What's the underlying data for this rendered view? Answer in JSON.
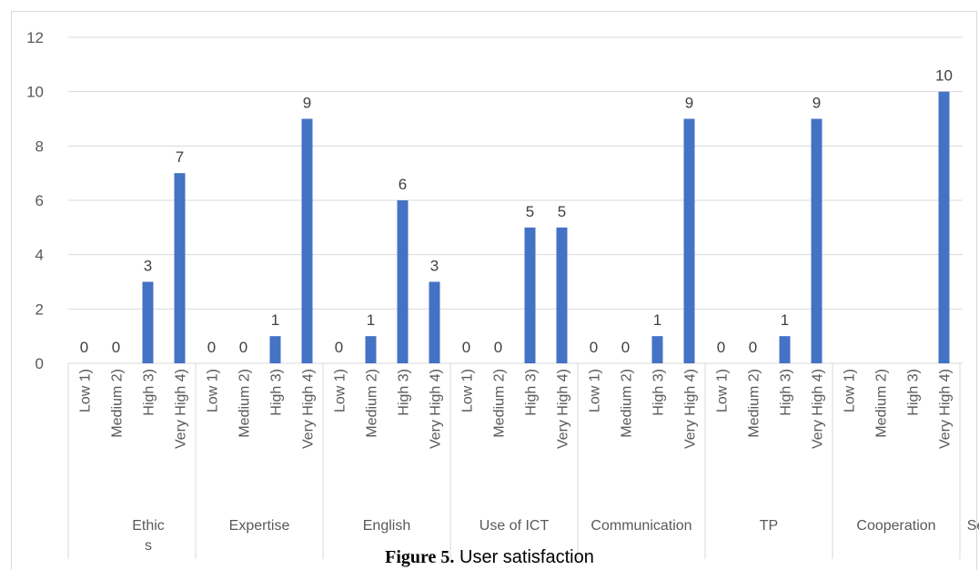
{
  "chart_data": {
    "type": "bar",
    "color": "#4472c4",
    "ylim": [
      0,
      12
    ],
    "yticks": [
      0,
      2,
      4,
      6,
      8,
      10,
      12
    ],
    "grid": true,
    "groups": [
      {
        "label": "Ethics",
        "categories": [
          "Low 1)",
          "Medium 2)",
          "High 3)",
          "Very High 4)"
        ],
        "values": [
          0,
          0,
          3,
          7
        ]
      },
      {
        "label": "Expertise",
        "categories": [
          "Low 1)",
          "Medium 2)",
          "High 3)",
          "Very High 4)"
        ],
        "values": [
          0,
          0,
          1,
          9
        ]
      },
      {
        "label": "English",
        "categories": [
          "Low 1)",
          "Medium 2)",
          "High 3)",
          "Very High 4)"
        ],
        "values": [
          0,
          1,
          6,
          3
        ]
      },
      {
        "label": "Use of ICT",
        "categories": [
          "Low 1)",
          "Medium 2)",
          "High 3)",
          "Very High 4)"
        ],
        "values": [
          0,
          0,
          5,
          5
        ]
      },
      {
        "label": "Communication",
        "categories": [
          "Low 1)",
          "Medium 2)",
          "High 3)",
          "Very High 4)"
        ],
        "values": [
          0,
          0,
          1,
          9
        ]
      },
      {
        "label": "TP",
        "categories": [
          "Low 1)",
          "Medium 2)",
          "High 3)",
          "Very High 4)"
        ],
        "values": [
          0,
          0,
          1,
          9
        ]
      },
      {
        "label": "Cooperation",
        "categories": [
          "Low 1)",
          "Medium 2)",
          "High 3)",
          "Very High 4)"
        ],
        "values": [
          null,
          null,
          null,
          10
        ]
      },
      {
        "label": "Self-development",
        "categories": [],
        "values": []
      }
    ]
  },
  "caption": {
    "figure_label": "Figure 5.",
    "title": "User satisfaction"
  }
}
